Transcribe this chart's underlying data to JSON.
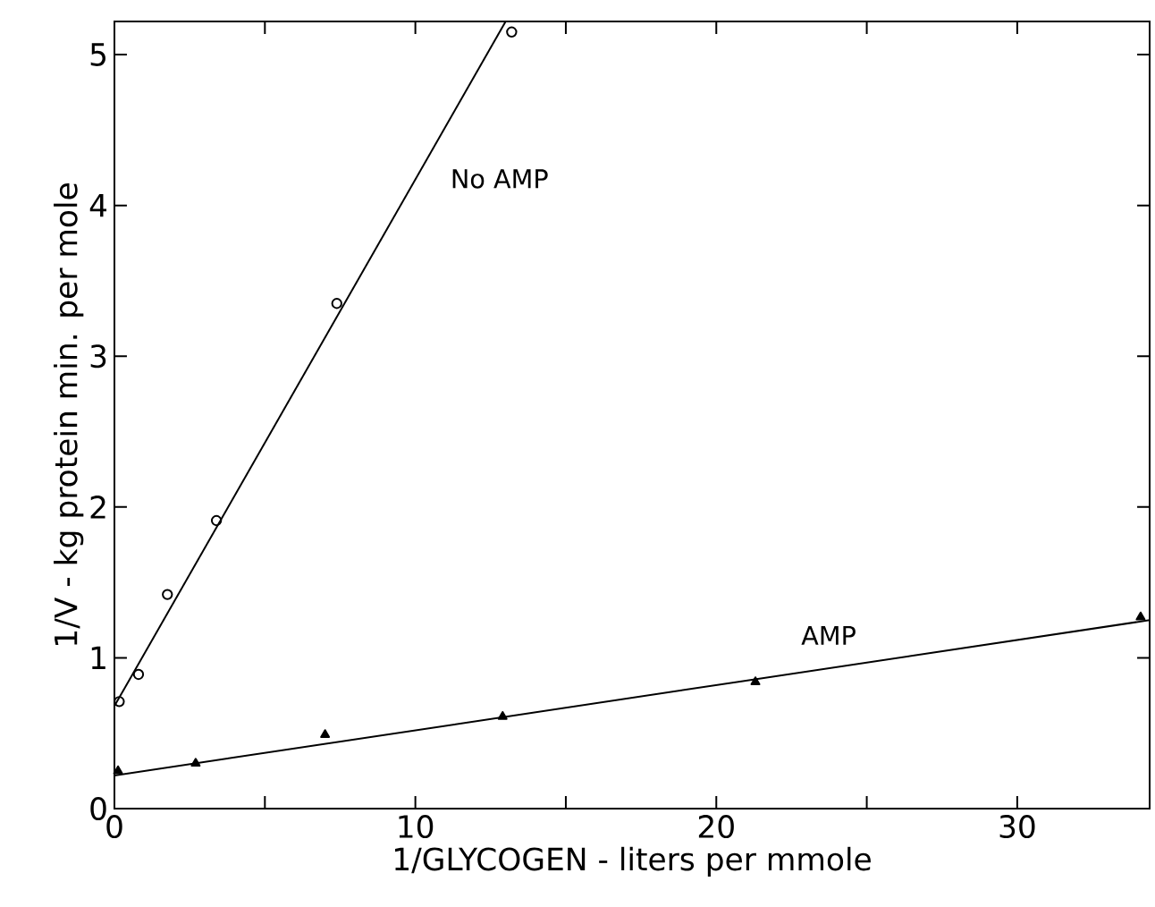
{
  "chart_data": {
    "type": "scatter",
    "xlabel": "1/GLYCOGEN - liters per mmole",
    "ylabel": "1/V - kg protein min. per mole",
    "xlim": [
      0,
      34.4
    ],
    "ylim": [
      0,
      5.22
    ],
    "xticks": [
      0,
      {
        "value": 5,
        "label": null
      },
      10,
      {
        "value": 15,
        "label": null
      },
      20,
      {
        "value": 25,
        "label": null
      },
      30
    ],
    "yticks": [
      0,
      1,
      2,
      3,
      4,
      5
    ],
    "series": [
      {
        "marker": "circle",
        "color": "#000000",
        "x": [
          0.16,
          0.8,
          1.76,
          3.39,
          7.39,
          13.2
        ],
        "values": [
          0.71,
          0.89,
          1.42,
          1.91,
          3.35,
          5.15
        ]
      },
      {
        "type": "line",
        "marker": "none",
        "color": "#000000",
        "x": [
          0,
          13.0
        ],
        "values": [
          0.68,
          5.22
        ]
      },
      {
        "marker": "triangle",
        "color": "#000000",
        "x": [
          0.12,
          2.7,
          7.0,
          12.9,
          21.3,
          34.1
        ],
        "values": [
          0.25,
          0.3,
          0.49,
          0.61,
          0.84,
          1.27
        ]
      },
      {
        "type": "line",
        "marker": "none",
        "color": "#000000",
        "x": [
          0,
          34.4
        ],
        "values": [
          0.22,
          1.25
        ]
      }
    ],
    "annotations": [
      "No AMP",
      "AMP"
    ]
  }
}
